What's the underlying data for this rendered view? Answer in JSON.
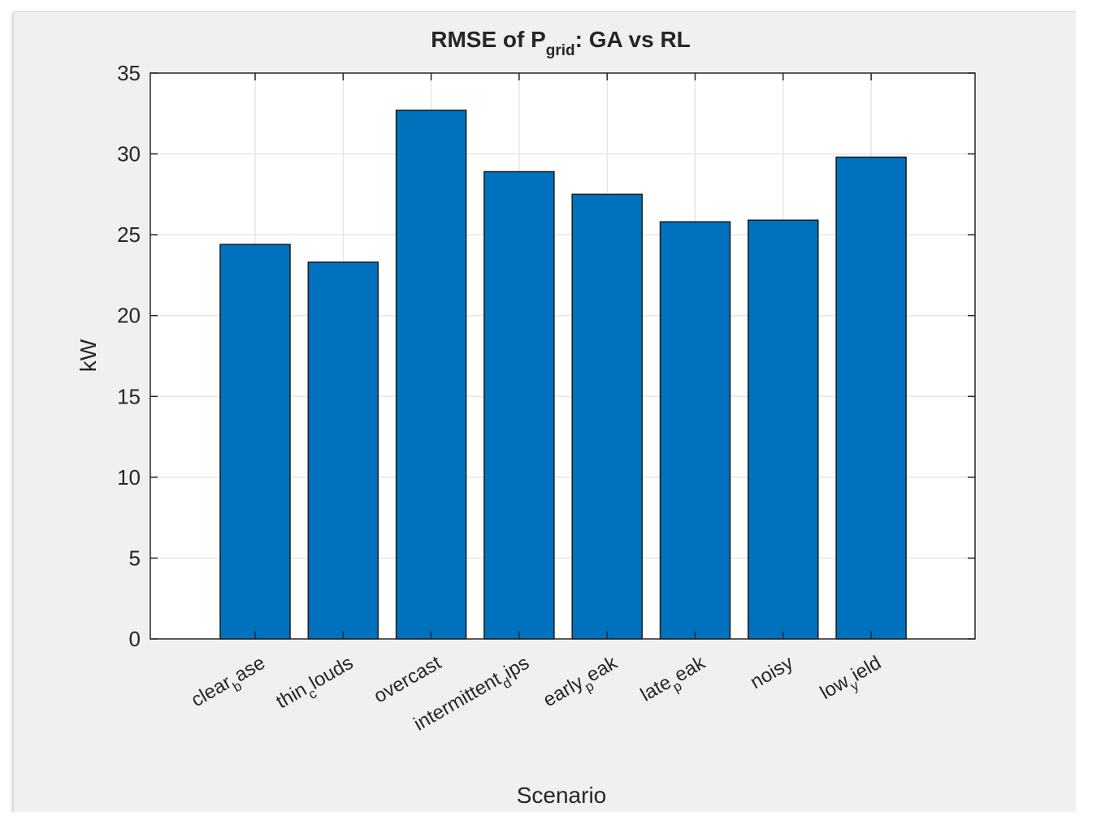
{
  "chart_data": {
    "type": "bar",
    "title": {
      "main": "RMSE of P",
      "subscript": "grid",
      "rest": ": GA vs RL"
    },
    "xlabel": "Scenario",
    "ylabel": "kW",
    "ylim": [
      0,
      35
    ],
    "yticks": [
      0,
      5,
      10,
      15,
      20,
      25,
      30,
      35
    ],
    "grid": true,
    "bar_color": "#0072bd",
    "categories": [
      {
        "pre": "clear",
        "sub": "b",
        "post": "ase"
      },
      {
        "pre": "thin",
        "sub": "c",
        "post": "louds"
      },
      {
        "pre": "overcast",
        "sub": "",
        "post": ""
      },
      {
        "pre": "intermittent",
        "sub": "d",
        "post": "ips"
      },
      {
        "pre": "early",
        "sub": "p",
        "post": "eak"
      },
      {
        "pre": "late",
        "sub": "p",
        "post": "eak"
      },
      {
        "pre": "noisy",
        "sub": "",
        "post": ""
      },
      {
        "pre": "low",
        "sub": "y",
        "post": "ield"
      }
    ],
    "values": [
      24.4,
      23.3,
      32.7,
      28.9,
      27.5,
      25.8,
      25.9,
      29.8
    ]
  }
}
